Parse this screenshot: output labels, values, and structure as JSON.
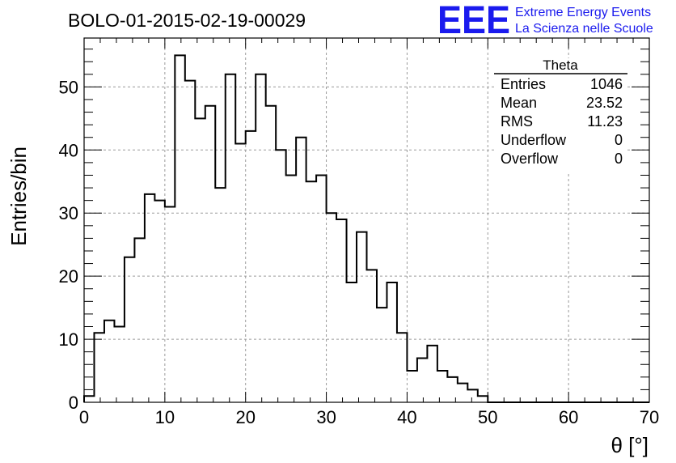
{
  "chart_data": {
    "type": "histogram",
    "title": "BOLO-01-2015-02-19-00029",
    "xlabel": "θ [°]",
    "ylabel": "Entries/bin",
    "xlim": [
      0,
      70
    ],
    "ylim": [
      0,
      57.75
    ],
    "x_ticks": [
      0,
      10,
      20,
      30,
      40,
      50,
      60,
      70
    ],
    "y_ticks": [
      0,
      10,
      20,
      30,
      40,
      50
    ],
    "grid": true,
    "bin_width": 1.25,
    "values": [
      1,
      11,
      13,
      12,
      23,
      26,
      33,
      32,
      31,
      55,
      51,
      45,
      47,
      34,
      52,
      41,
      43,
      52,
      47,
      40,
      36,
      42,
      35,
      36,
      30,
      29,
      19,
      27,
      21,
      15,
      19,
      11,
      5,
      7,
      9,
      5,
      4,
      3,
      2,
      1,
      0,
      0,
      0,
      0,
      0,
      0,
      0,
      0,
      0,
      0,
      0,
      0,
      0,
      0,
      0,
      0
    ],
    "stats_box": {
      "title": "Theta",
      "rows": [
        {
          "label": "Entries",
          "value": "1046"
        },
        {
          "label": "Mean",
          "value": "23.52"
        },
        {
          "label": "RMS",
          "value": "11.23"
        },
        {
          "label": "Underflow",
          "value": "0"
        },
        {
          "label": "Overflow",
          "value": "0"
        }
      ],
      "placement": "top-right"
    }
  },
  "logo": {
    "mark": "EEE",
    "line1": "Extreme Energy Events",
    "line2": "La Scienza nelle Scuole",
    "color": "#1a1aee"
  }
}
